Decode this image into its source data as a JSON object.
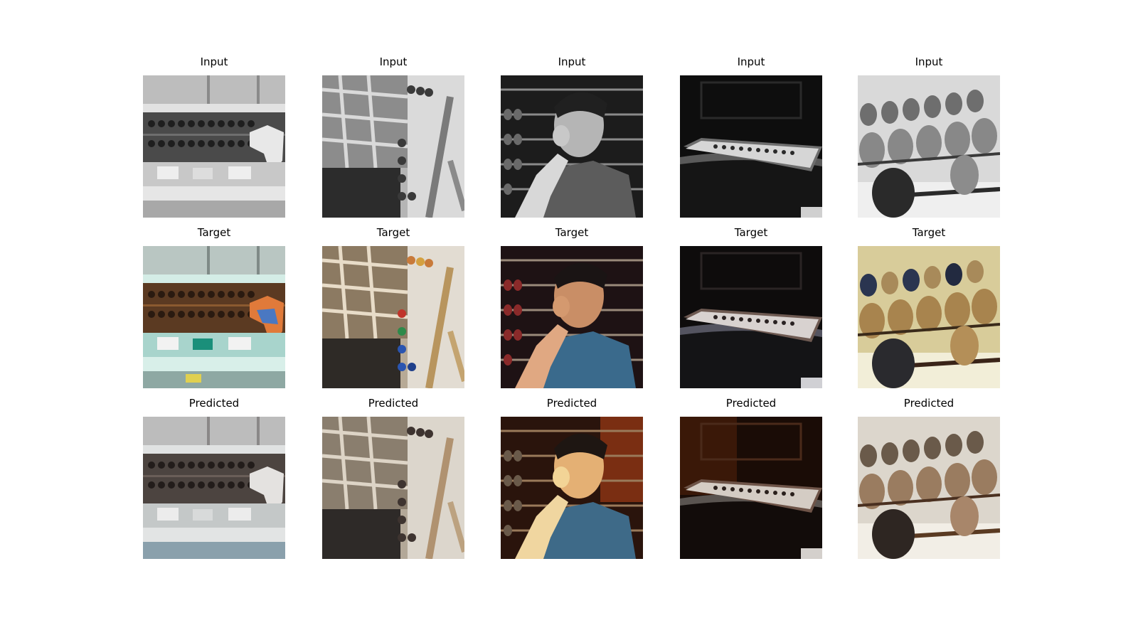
{
  "rows": [
    {
      "label": "Input"
    },
    {
      "label": "Target"
    },
    {
      "label": "Predicted"
    }
  ],
  "columns": [
    {
      "subject": "abacus-display-case"
    },
    {
      "subject": "child-with-abacus"
    },
    {
      "subject": "man-with-abacus"
    },
    {
      "subject": "abacus-on-table"
    },
    {
      "subject": "abacus-beads-closeup"
    }
  ]
}
